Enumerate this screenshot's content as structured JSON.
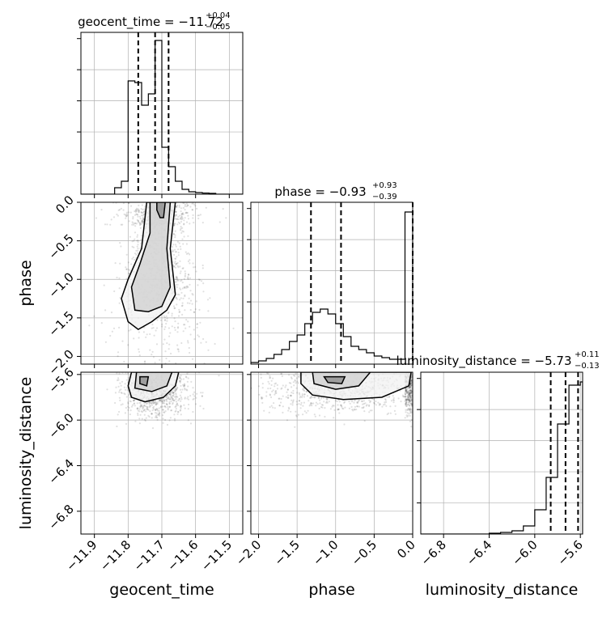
{
  "chart_data": {
    "type": "corner",
    "parameters": [
      "geocent_time",
      "phase",
      "luminosity_distance"
    ],
    "titles": [
      {
        "param": "geocent_time",
        "text": "geocent_time = −11.72",
        "sup": "+0.04",
        "sub": "−0.05"
      },
      {
        "param": "phase",
        "text": "phase = −0.93",
        "sup": "+0.93",
        "sub": "−0.39"
      },
      {
        "param": "luminosity_distance",
        "text": "luminosity_distance = −5.73",
        "sup": "+0.11",
        "sub": "−0.13"
      }
    ],
    "axis_labels": {
      "x": [
        "geocent_time",
        "phase",
        "luminosity_distance"
      ],
      "y": [
        "phase",
        "luminosity_distance"
      ]
    },
    "ranges": {
      "geocent_time": [
        -11.94,
        -11.46
      ],
      "phase": [
        -2.1,
        0.0
      ],
      "luminosity_distance": [
        -7.0,
        -5.58
      ]
    },
    "ticks": {
      "geocent_time": [
        "−11.9",
        "−11.8",
        "−11.7",
        "−11.6",
        "−11.5"
      ],
      "phase": [
        "−2.0",
        "−1.5",
        "−1.0",
        "−0.5",
        "0.0"
      ],
      "luminosity_distance": [
        "−6.8",
        "−6.4",
        "−6.0",
        "−5.6"
      ]
    },
    "tick_values": {
      "geocent_time": [
        -11.9,
        -11.8,
        -11.7,
        -11.6,
        -11.5
      ],
      "phase": [
        -2.0,
        -1.5,
        -1.0,
        -0.5,
        0.0
      ],
      "luminosity_distance": [
        -6.8,
        -6.4,
        -6.0,
        -5.6
      ]
    },
    "histograms": {
      "geocent_time": {
        "edges": [
          -11.94,
          -11.92,
          -11.9,
          -11.88,
          -11.86,
          -11.84,
          -11.82,
          -11.8,
          -11.78,
          -11.76,
          -11.74,
          -11.72,
          -11.7,
          -11.68,
          -11.66,
          -11.64,
          -11.62,
          -11.6,
          -11.58,
          -11.56,
          -11.54,
          -11.52,
          -11.5,
          -11.48,
          -11.46
        ],
        "counts": [
          0,
          0,
          0,
          0,
          0,
          0.04,
          0.08,
          0.7,
          0.69,
          0.55,
          0.62,
          0.95,
          0.29,
          0.17,
          0.08,
          0.03,
          0.015,
          0.01,
          0.007,
          0.005,
          0,
          0,
          0,
          0
        ]
      },
      "phase": {
        "edges": [
          -2.1,
          -2.0,
          -1.9,
          -1.8,
          -1.7,
          -1.6,
          -1.5,
          -1.4,
          -1.3,
          -1.2,
          -1.1,
          -1.0,
          -0.9,
          -0.8,
          -0.7,
          -0.6,
          -0.5,
          -0.4,
          -0.3,
          -0.2,
          -0.1,
          0.0
        ],
        "counts": [
          0.01,
          0.02,
          0.035,
          0.06,
          0.09,
          0.14,
          0.18,
          0.25,
          0.32,
          0.34,
          0.31,
          0.25,
          0.17,
          0.11,
          0.09,
          0.07,
          0.05,
          0.04,
          0.03,
          0.03,
          0.94
        ]
      },
      "luminosity_distance": {
        "edges": [
          -7.0,
          -6.9,
          -6.8,
          -6.7,
          -6.6,
          -6.5,
          -6.4,
          -6.3,
          -6.2,
          -6.1,
          -6.0,
          -5.9,
          -5.8,
          -5.7,
          -5.6,
          -5.58
        ],
        "counts": [
          0,
          0,
          0,
          0,
          0,
          0,
          0.005,
          0.01,
          0.02,
          0.05,
          0.15,
          0.35,
          0.68,
          0.92,
          0.94
        ]
      }
    },
    "quantiles": {
      "geocent_time": [
        -11.77,
        -11.72,
        -11.68
      ],
      "phase": [
        -1.32,
        -0.93,
        0.0
      ],
      "luminosity_distance": [
        -5.86,
        -5.73,
        -5.62
      ]
    },
    "contours_2d": {
      "phase_vs_geocent_time": [
        {
          "level": "outer",
          "points": [
            [
              -11.745,
              0.0
            ],
            [
              -11.66,
              0.0
            ],
            [
              -11.665,
              -0.2
            ],
            [
              -11.675,
              -0.6
            ],
            [
              -11.665,
              -1.0
            ],
            [
              -11.66,
              -1.2
            ],
            [
              -11.685,
              -1.4
            ],
            [
              -11.73,
              -1.55
            ],
            [
              -11.77,
              -1.65
            ],
            [
              -11.8,
              -1.55
            ],
            [
              -11.82,
              -1.25
            ],
            [
              -11.8,
              -1.0
            ],
            [
              -11.76,
              -0.6
            ],
            [
              -11.75,
              -0.2
            ]
          ]
        },
        {
          "level": "middle",
          "points": [
            [
              -11.735,
              0.0
            ],
            [
              -11.675,
              0.0
            ],
            [
              -11.685,
              -0.6
            ],
            [
              -11.675,
              -1.1
            ],
            [
              -11.7,
              -1.35
            ],
            [
              -11.74,
              -1.42
            ],
            [
              -11.78,
              -1.4
            ],
            [
              -11.79,
              -1.1
            ],
            [
              -11.765,
              -0.8
            ],
            [
              -11.735,
              -0.4
            ]
          ]
        },
        {
          "level": "inner",
          "points": [
            [
              -11.715,
              0.0
            ],
            [
              -11.69,
              0.0
            ],
            [
              -11.695,
              -0.2
            ],
            [
              -11.705,
              -0.2
            ],
            [
              -11.715,
              -0.1
            ]
          ]
        }
      ],
      "ld_vs_geocent_time": [
        {
          "level": "outer",
          "points": [
            [
              -11.79,
              -5.58
            ],
            [
              -11.65,
              -5.58
            ],
            [
              -11.66,
              -5.7
            ],
            [
              -11.695,
              -5.8
            ],
            [
              -11.75,
              -5.84
            ],
            [
              -11.79,
              -5.8
            ],
            [
              -11.8,
              -5.7
            ]
          ]
        },
        {
          "level": "middle",
          "points": [
            [
              -11.775,
              -5.58
            ],
            [
              -11.67,
              -5.58
            ],
            [
              -11.685,
              -5.7
            ],
            [
              -11.73,
              -5.75
            ],
            [
              -11.78,
              -5.72
            ]
          ]
        },
        {
          "level": "inner",
          "points": [
            [
              -11.765,
              -5.62
            ],
            [
              -11.74,
              -5.62
            ],
            [
              -11.745,
              -5.7
            ],
            [
              -11.765,
              -5.68
            ]
          ]
        }
      ],
      "ld_vs_phase": [
        {
          "level": "outer",
          "points": [
            [
              -1.45,
              -5.58
            ],
            [
              -0.02,
              -5.58
            ],
            [
              -0.05,
              -5.7
            ],
            [
              -0.4,
              -5.8
            ],
            [
              -0.9,
              -5.82
            ],
            [
              -1.3,
              -5.78
            ],
            [
              -1.45,
              -5.68
            ]
          ]
        },
        {
          "level": "middle",
          "points": [
            [
              -1.3,
              -5.58
            ],
            [
              -0.55,
              -5.58
            ],
            [
              -0.7,
              -5.7
            ],
            [
              -1.0,
              -5.73
            ],
            [
              -1.28,
              -5.68
            ]
          ]
        },
        {
          "level": "inner",
          "points": [
            [
              -1.15,
              -5.62
            ],
            [
              -0.88,
              -5.62
            ],
            [
              -0.92,
              -5.68
            ],
            [
              -1.1,
              -5.67
            ]
          ]
        }
      ]
    },
    "scatter_density": [
      {
        "panel": "phase_vs_geocent_time",
        "center": [
          -11.71,
          -0.9
        ],
        "spread": [
          0.05,
          0.55
        ],
        "points": 1400
      },
      {
        "panel": "ld_vs_geocent_time",
        "center": [
          -11.72,
          -5.75
        ],
        "spread": [
          0.05,
          0.11
        ],
        "points": 900
      },
      {
        "panel": "ld_vs_phase",
        "center": [
          -0.95,
          -5.73
        ],
        "spread": [
          0.55,
          0.11
        ],
        "points": 1200
      }
    ]
  }
}
